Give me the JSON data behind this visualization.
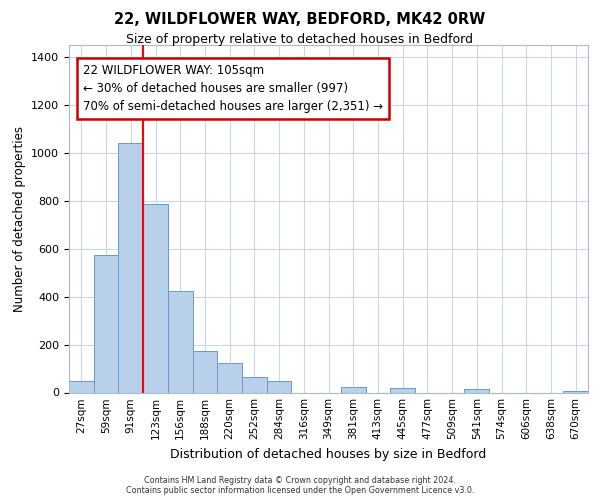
{
  "title1": "22, WILDFLOWER WAY, BEDFORD, MK42 0RW",
  "title2": "Size of property relative to detached houses in Bedford",
  "xlabel": "Distribution of detached houses by size in Bedford",
  "ylabel": "Number of detached properties",
  "categories": [
    "27sqm",
    "59sqm",
    "91sqm",
    "123sqm",
    "156sqm",
    "188sqm",
    "220sqm",
    "252sqm",
    "284sqm",
    "316sqm",
    "349sqm",
    "381sqm",
    "413sqm",
    "445sqm",
    "477sqm",
    "509sqm",
    "541sqm",
    "574sqm",
    "606sqm",
    "638sqm",
    "670sqm"
  ],
  "values": [
    50,
    575,
    1040,
    785,
    425,
    175,
    125,
    65,
    50,
    0,
    0,
    25,
    0,
    20,
    0,
    0,
    15,
    0,
    0,
    0,
    5
  ],
  "bar_color": "#b8d0ea",
  "bar_edge_color": "#6699cc",
  "red_line_x": 2.5,
  "annotation_text": "22 WILDFLOWER WAY: 105sqm\n← 30% of detached houses are smaller (997)\n70% of semi-detached houses are larger (2,351) →",
  "annotation_box_color": "#ffffff",
  "annotation_box_edge": "#cc0000",
  "ylim": [
    0,
    1450
  ],
  "yticks": [
    0,
    200,
    400,
    600,
    800,
    1000,
    1200,
    1400
  ],
  "footer1": "Contains HM Land Registry data © Crown copyright and database right 2024.",
  "footer2": "Contains public sector information licensed under the Open Government Licence v3.0.",
  "bg_color": "#ffffff",
  "grid_color": "#c8d8ea"
}
